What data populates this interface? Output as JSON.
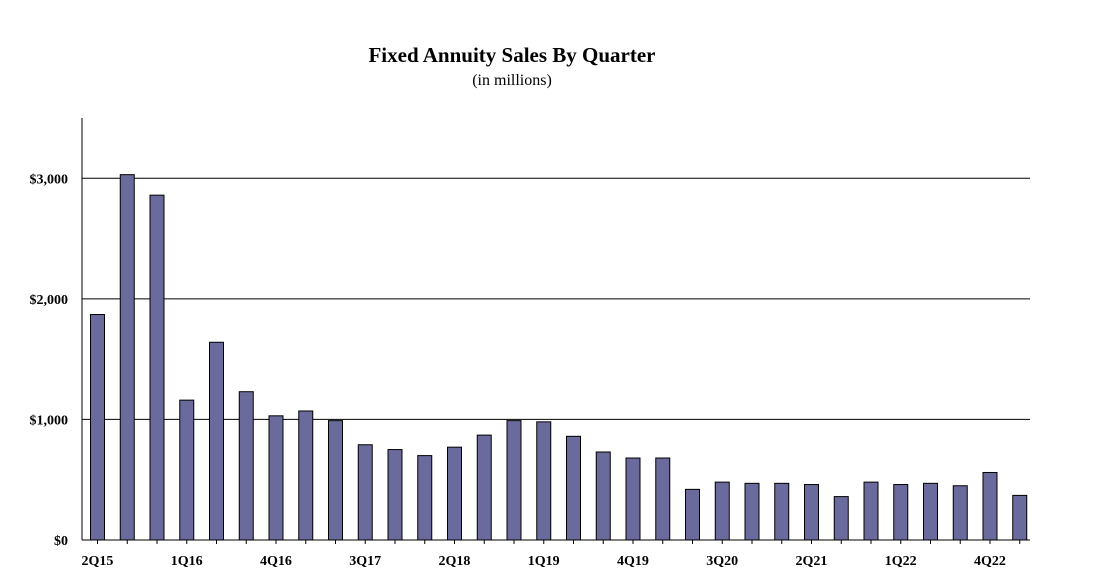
{
  "chart_data": {
    "type": "bar",
    "title": "Fixed Annuity Sales By Quarter",
    "subtitle": "(in millions)",
    "xlabel": "",
    "ylabel": "",
    "ylim": [
      0,
      3500
    ],
    "yticks": [
      0,
      1000,
      2000,
      3000
    ],
    "ytick_labels": [
      "$0",
      "$1,000",
      "$2,000",
      "$3,000"
    ],
    "grid": true,
    "legend": "none",
    "bar_color": "#6a6a9c",
    "categories": [
      "2Q15",
      "3Q15",
      "4Q15",
      "1Q16",
      "2Q16",
      "3Q16",
      "4Q16",
      "1Q17",
      "2Q17",
      "3Q17",
      "4Q17",
      "1Q18",
      "2Q18",
      "3Q18",
      "4Q18",
      "1Q19",
      "2Q19",
      "3Q19",
      "4Q19",
      "1Q20",
      "2Q20",
      "3Q20",
      "4Q20",
      "1Q21",
      "2Q21",
      "3Q21",
      "4Q21",
      "1Q22",
      "2Q22",
      "3Q22",
      "4Q22",
      "1Q23"
    ],
    "xtick_labels": [
      "2Q15",
      "1Q16",
      "4Q16",
      "3Q17",
      "2Q18",
      "1Q19",
      "4Q19",
      "3Q20",
      "2Q21",
      "1Q22",
      "4Q22"
    ],
    "values": [
      1870,
      3030,
      2860,
      1160,
      1640,
      1230,
      1030,
      1070,
      990,
      790,
      750,
      700,
      770,
      870,
      990,
      980,
      860,
      730,
      680,
      680,
      420,
      480,
      470,
      470,
      460,
      360,
      480,
      460,
      470,
      450,
      560,
      370
    ]
  }
}
